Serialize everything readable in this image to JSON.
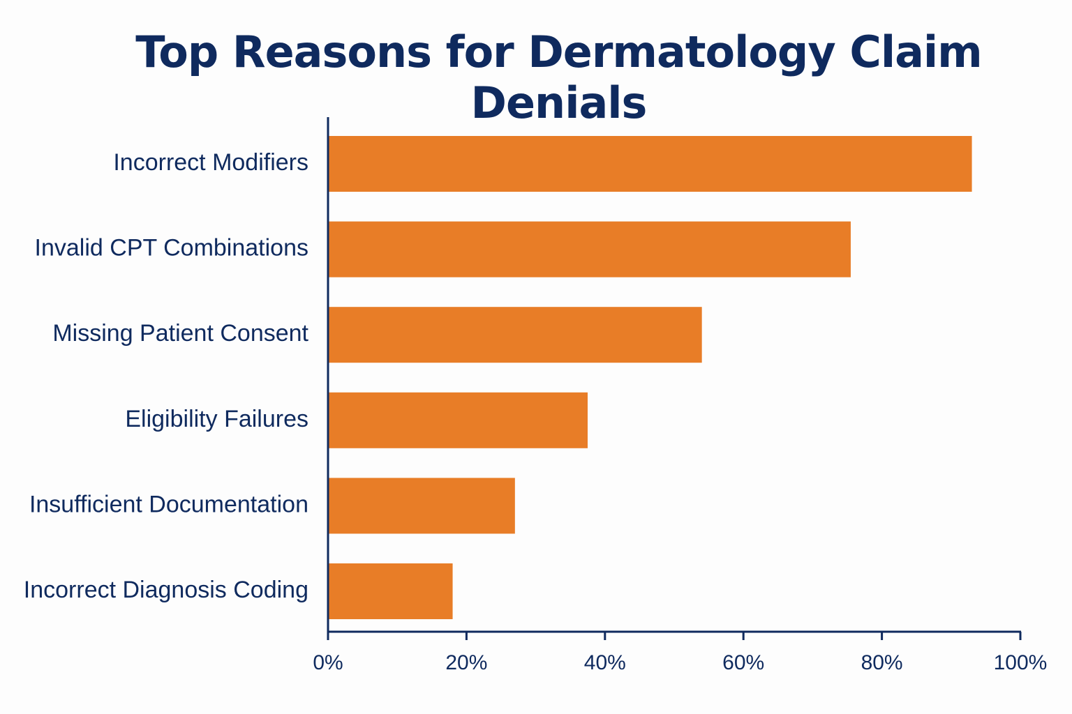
{
  "chart_data": {
    "type": "bar",
    "orientation": "horizontal",
    "title": "Top Reasons for Dermatology Claim Denials",
    "xlabel": "",
    "ylabel": "",
    "categories": [
      "Incorrect Modifiers",
      "Invalid CPT Combinations",
      "Missing Patient Consent",
      "Eligibility Failures",
      "Insufficient Documentation",
      "Incorrect Diagnosis Coding"
    ],
    "values": [
      93,
      75.5,
      54,
      37.5,
      27,
      18
    ],
    "xlim": [
      0,
      100
    ],
    "xticks": [
      0,
      20,
      40,
      60,
      80,
      100
    ],
    "xtick_labels": [
      "0%",
      "20%",
      "40%",
      "60%",
      "80%",
      "100%"
    ],
    "grid": false,
    "legend": "none",
    "colors": {
      "bar": "#e87d27",
      "axis": "#0f2a5e",
      "text": "#0f2a5e",
      "background": "#fdfdfd"
    }
  }
}
